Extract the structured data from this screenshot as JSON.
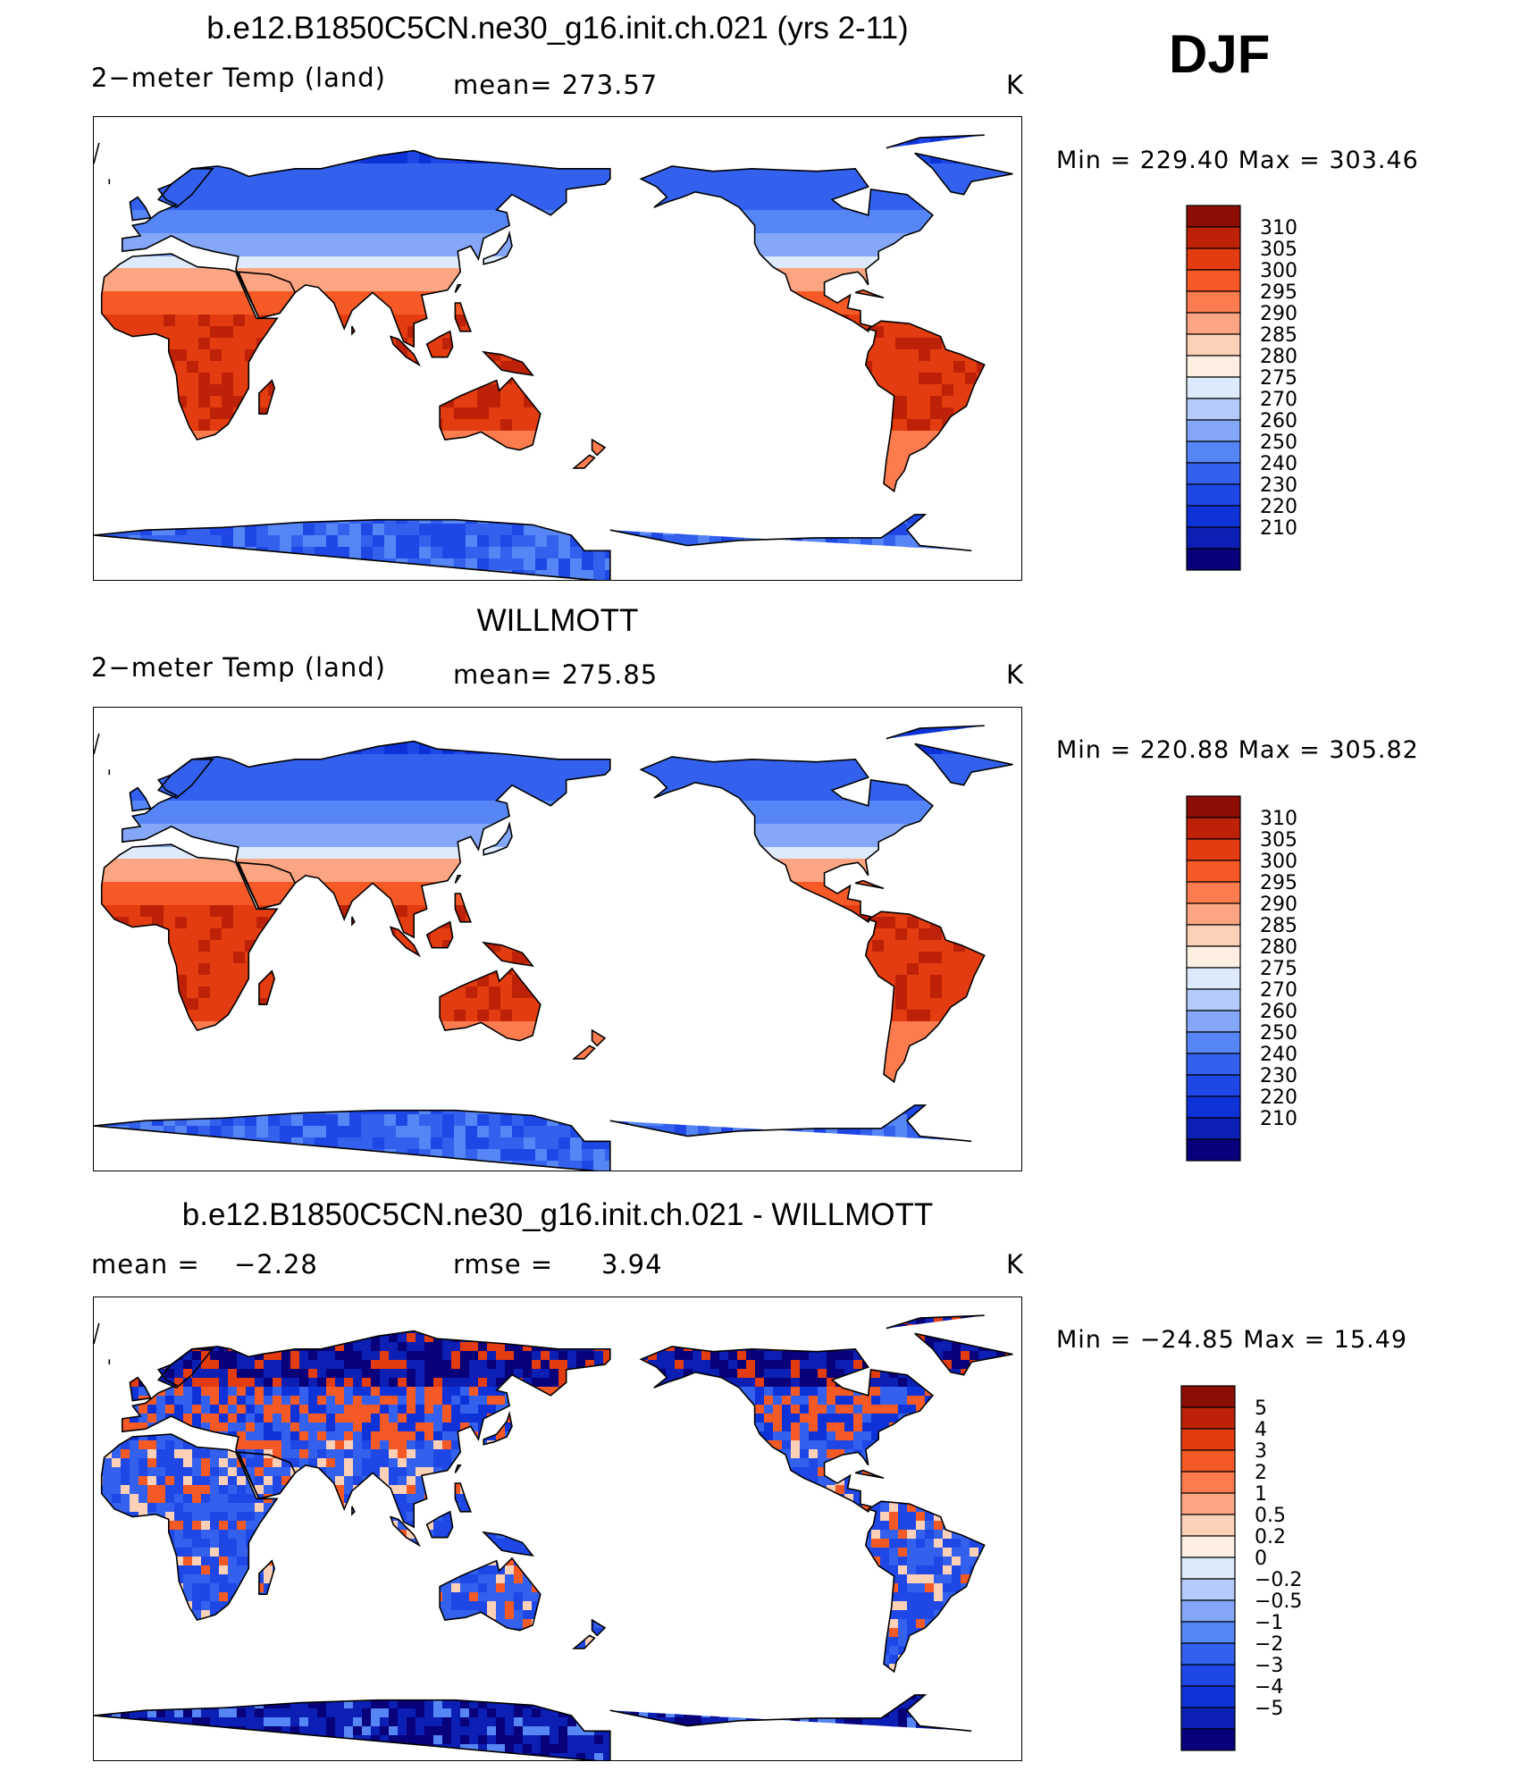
{
  "figure": {
    "season": "DJF",
    "units_label": "K"
  },
  "palette": {
    "temperature": [
      "#08007a",
      "#0b1fb4",
      "#0d33d8",
      "#1e47e6",
      "#3361ee",
      "#5685f5",
      "#85a7f8",
      "#b5cbfb",
      "#dceafc",
      "#fdf0e3",
      "#fdd0b8",
      "#fca583",
      "#fc7b4f",
      "#f55a26",
      "#e23c10",
      "#bd2208",
      "#8c0d04"
    ],
    "difference": [
      "#08007a",
      "#0b1fb4",
      "#0d33d8",
      "#1e47e6",
      "#3361ee",
      "#5685f5",
      "#85a7f8",
      "#b5cbfb",
      "#dceafc",
      "#fdf0e3",
      "#fdd0b8",
      "#fca583",
      "#fc7b4f",
      "#f55a26",
      "#e23c10",
      "#bd2208",
      "#8c0d04"
    ],
    "coast": "#000000"
  },
  "chart_data": [
    {
      "type": "heatmap",
      "title": "b.e12.B1850C5CN.ne30_g16.init.ch.021 (yrs 2-11)",
      "variable_label": "2−meter Temp (land)",
      "stat_text": "mean=  273.57",
      "units": "K",
      "min_max_text": "Min  =  229.40  Max  =  303.46",
      "min": 229.4,
      "max": 303.46,
      "mean": 273.57,
      "colorbar_labels": [
        "310",
        "305",
        "300",
        "295",
        "290",
        "285",
        "280",
        "275",
        "270",
        "260",
        "250",
        "240",
        "230",
        "220",
        "210"
      ],
      "x_range_lon": [
        0,
        360
      ],
      "y_range_lat": [
        -90,
        90
      ],
      "map_center": "Pacific (180)"
    },
    {
      "type": "heatmap",
      "title": "WILLMOTT",
      "variable_label": "2−meter Temp (land)",
      "stat_text": "mean=  275.85",
      "units": "K",
      "min_max_text": "Min  =  220.88  Max  =  305.82",
      "min": 220.88,
      "max": 305.82,
      "mean": 275.85,
      "colorbar_labels": [
        "310",
        "305",
        "300",
        "295",
        "290",
        "285",
        "280",
        "275",
        "270",
        "260",
        "250",
        "240",
        "230",
        "220",
        "210"
      ],
      "x_range_lon": [
        0,
        360
      ],
      "y_range_lat": [
        -90,
        90
      ],
      "map_center": "Pacific (180)"
    },
    {
      "type": "heatmap",
      "title": "b.e12.B1850C5CN.ne30_g16.init.ch.021 - WILLMOTT",
      "mean_label": "mean  =",
      "mean_value": "−2.28",
      "rmse_label": "rmse  =",
      "rmse_value": "3.94",
      "units": "K",
      "min_max_text": "Min  =  −24.85  Max  =    15.49",
      "min": -24.85,
      "max": 15.49,
      "mean": -2.28,
      "rmse": 3.94,
      "colorbar_labels": [
        "5",
        "4",
        "3",
        "2",
        "1",
        "0.5",
        "0.2",
        "0",
        "−0.2",
        "−0.5",
        "−1",
        "−2",
        "−3",
        "−4",
        "−5"
      ],
      "x_range_lon": [
        0,
        360
      ],
      "y_range_lat": [
        -90,
        90
      ],
      "map_center": "Pacific (180)"
    }
  ]
}
